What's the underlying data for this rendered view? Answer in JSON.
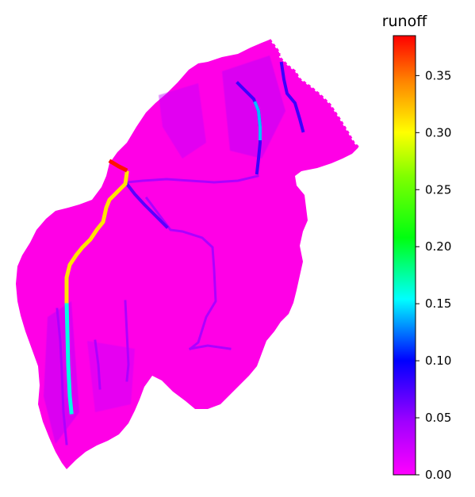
{
  "chart_data": {
    "type": "heatmap",
    "description": "Raster map of a catchment with runoff values; values mostly near 0 with a high-runoff channel",
    "colorbar": {
      "title": "runoff",
      "colormap": "gist_rainbow_r",
      "range": [
        0.0,
        0.385
      ],
      "ticks": [
        0.0,
        0.05,
        0.1,
        0.15,
        0.2,
        0.25,
        0.3,
        0.35
      ],
      "tick_labels": [
        "0.00",
        "0.05",
        "0.10",
        "0.15",
        "0.20",
        "0.25",
        "0.30",
        "0.35"
      ]
    },
    "background_value": 0.0,
    "features": [
      {
        "name": "main-channel-upper",
        "value": 0.31
      },
      {
        "name": "main-channel-source",
        "value": 0.38
      },
      {
        "name": "main-channel-lower",
        "value": 0.16
      },
      {
        "name": "channel-mid",
        "value": 0.07
      },
      {
        "name": "channel-upper-right",
        "value": 0.08
      },
      {
        "name": "channel-upper-right-cyan",
        "value": 0.14
      },
      {
        "name": "tributaries",
        "value": 0.04
      }
    ],
    "colors": {
      "background_fill": "#ff00e0",
      "low": "#ff00ff",
      "mid_violet": "#8000ff",
      "blue": "#0010ff",
      "cyan": "#00ffff",
      "green": "#00ff20",
      "yellow": "#ffff00",
      "orange": "#ff8000",
      "red": "#ff0000"
    }
  }
}
